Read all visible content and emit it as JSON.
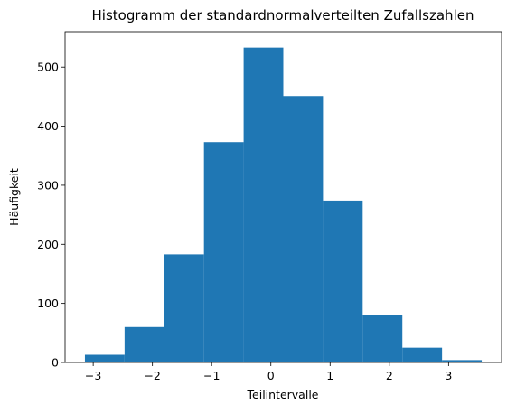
{
  "chart_data": {
    "type": "bar",
    "title": "Histogramm der standardnormalverteilten Zufallszahlen",
    "xlabel": "Teilintervalle",
    "ylabel": "Häufigkeit",
    "bin_edges": [
      -3.14,
      -2.47,
      -1.8,
      -1.13,
      -0.46,
      0.21,
      0.88,
      1.55,
      2.22,
      2.89,
      3.56
    ],
    "values": [
      13,
      60,
      183,
      373,
      533,
      451,
      274,
      81,
      25,
      4
    ],
    "xlim": [
      -3.475,
      3.895
    ],
    "ylim": [
      0,
      560
    ],
    "xticks": [
      {
        "value": -3,
        "label": "−3"
      },
      {
        "value": -2,
        "label": "−2"
      },
      {
        "value": -1,
        "label": "−1"
      },
      {
        "value": 0,
        "label": "0"
      },
      {
        "value": 1,
        "label": "1"
      },
      {
        "value": 2,
        "label": "2"
      },
      {
        "value": 3,
        "label": "3"
      }
    ],
    "yticks": [
      {
        "value": 0,
        "label": "0"
      },
      {
        "value": 100,
        "label": "100"
      },
      {
        "value": 200,
        "label": "200"
      },
      {
        "value": 300,
        "label": "300"
      },
      {
        "value": 400,
        "label": "400"
      },
      {
        "value": 500,
        "label": "500"
      }
    ],
    "bar_color": "#1f77b4",
    "grid": false,
    "legend": "none"
  }
}
